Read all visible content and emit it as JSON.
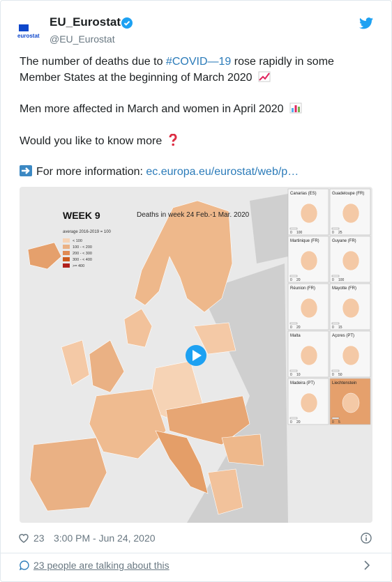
{
  "user": {
    "logo_text": "eurostat",
    "name": "EU_Eurostat",
    "handle": "@EU_Eurostat"
  },
  "tweet": {
    "line1_start": "The number of deaths due to ",
    "hashtag": "#COVID—19",
    "line1_end": " rose rapidly in some",
    "line2": "Member States at the beginning of March 2020",
    "line3": "Men more affected in March and women in April 2020",
    "line4": "Would you like to know more",
    "line5": "For more information: ",
    "link": "ec.europa.eu/eurostat/web/p…"
  },
  "map": {
    "week": "WEEK 9",
    "title": "Deaths in week 24 Feb.-1 Mar. 2020",
    "legend_title": "average 2016-2019 = 100",
    "legend": [
      "< 100",
      "100 - < 200",
      "200 - < 300",
      "300 - < 400",
      ">= 400"
    ],
    "insets": [
      {
        "name": "Canarias (ES)",
        "scale": [
          0,
          100
        ]
      },
      {
        "name": "Guadeloupe (FR)",
        "scale": [
          0,
          25
        ]
      },
      {
        "name": "Martinique (FR)",
        "scale": [
          0,
          20
        ]
      },
      {
        "name": "Guyane (FR)",
        "scale": [
          0,
          100
        ]
      },
      {
        "name": "Réunion (FR)",
        "scale": [
          0,
          20
        ]
      },
      {
        "name": "Mayotte (FR)",
        "scale": [
          0,
          15
        ]
      },
      {
        "name": "Malta",
        "scale": [
          0,
          10
        ]
      },
      {
        "name": "Açores (PT)",
        "scale": [
          0,
          50
        ]
      },
      {
        "name": "Madeira (PT)",
        "scale": [
          0,
          20
        ]
      },
      {
        "name": "Liechtenstein",
        "scale": [
          0,
          5
        ]
      }
    ]
  },
  "footer": {
    "likes": "23",
    "time": "3:00 PM - Jun 24, 2020",
    "talking": "23 people are talking about this"
  }
}
